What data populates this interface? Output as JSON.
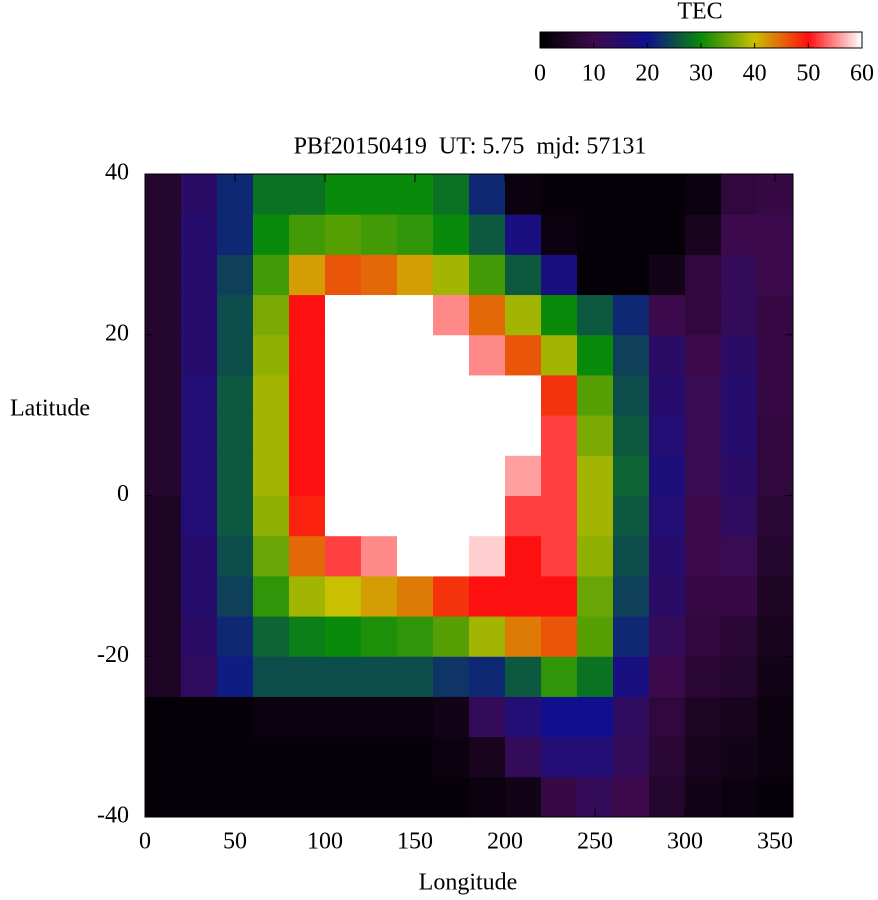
{
  "chart_data": {
    "type": "heatmap",
    "title": "PBf20150419  UT: 5.75  mjd: 57131",
    "x_label": "Longitude",
    "y_label": "Latitude",
    "colorbar_label": "TEC",
    "x": [
      10,
      30,
      50,
      70,
      90,
      110,
      130,
      150,
      170,
      190,
      210,
      230,
      250,
      270,
      290,
      310,
      330,
      350
    ],
    "y": [
      -37.5,
      -32.5,
      -27.5,
      -22.5,
      -17.5,
      -12.5,
      -7.5,
      -2.5,
      2.5,
      7.5,
      12.5,
      17.5,
      22.5,
      27.5,
      32.5,
      37.5
    ],
    "z": [
      [
        1,
        1,
        1,
        1,
        1,
        1,
        1,
        1,
        1,
        2,
        3,
        9,
        12,
        10,
        6,
        3,
        2,
        1
      ],
      [
        1,
        1,
        1,
        1,
        1,
        1,
        1,
        1,
        2,
        4,
        12,
        16,
        16,
        12,
        7,
        4,
        3,
        2
      ],
      [
        1,
        1,
        1,
        2,
        2,
        2,
        2,
        2,
        3,
        12,
        16,
        20,
        20,
        13,
        8,
        5,
        4,
        2
      ],
      [
        5,
        13,
        21,
        25,
        25,
        25,
        25,
        25,
        23,
        22,
        26,
        32,
        28,
        18,
        10,
        7,
        6,
        3
      ],
      [
        5,
        14,
        22,
        27,
        29,
        30,
        31,
        32,
        34,
        38,
        44,
        46,
        34,
        22,
        12,
        8,
        7,
        4
      ],
      [
        5,
        15,
        24,
        32,
        38,
        40,
        42,
        44,
        48,
        50,
        50,
        50,
        35,
        24,
        14,
        9,
        9,
        5
      ],
      [
        5,
        15,
        25,
        35,
        45,
        52,
        55,
        60,
        60,
        58,
        50,
        52,
        37,
        25,
        15,
        10,
        11,
        6
      ],
      [
        5,
        16,
        26,
        37,
        49,
        60,
        60,
        60,
        60,
        60,
        52,
        52,
        38,
        26,
        16,
        10,
        13,
        7
      ],
      [
        6,
        16,
        26,
        38,
        50,
        60,
        60,
        60,
        60,
        60,
        56,
        52,
        38,
        27,
        17,
        11,
        14,
        8
      ],
      [
        6,
        16,
        26,
        38,
        50,
        60,
        60,
        60,
        60,
        60,
        60,
        52,
        36,
        26,
        16,
        11,
        15,
        8
      ],
      [
        6,
        16,
        26,
        38,
        50,
        60,
        60,
        60,
        60,
        60,
        60,
        48,
        34,
        25,
        15,
        11,
        15,
        9
      ],
      [
        6,
        15,
        25,
        37,
        50,
        60,
        60,
        60,
        60,
        55,
        46,
        38,
        30,
        24,
        14,
        10,
        14,
        9
      ],
      [
        6,
        15,
        25,
        36,
        50,
        60,
        60,
        60,
        55,
        45,
        38,
        30,
        26,
        22,
        10,
        8,
        12,
        9
      ],
      [
        6,
        15,
        24,
        33,
        42,
        46,
        45,
        42,
        38,
        33,
        26,
        18,
        1,
        1,
        3,
        8,
        12,
        10
      ],
      [
        6,
        15,
        22,
        30,
        33,
        34,
        33,
        32,
        30,
        26,
        18,
        2,
        1,
        1,
        1,
        4,
        10,
        10
      ],
      [
        6,
        14,
        22,
        28,
        28,
        30,
        30,
        30,
        28,
        22,
        2,
        1,
        1,
        1,
        1,
        2,
        8,
        9
      ]
    ],
    "xlim": [
      0,
      360
    ],
    "xticks": [
      0,
      50,
      100,
      150,
      200,
      250,
      300,
      350
    ],
    "ylim": [
      -40,
      40
    ],
    "yticks": [
      -40,
      -20,
      0,
      20,
      40
    ],
    "zlim": [
      0,
      60
    ],
    "zticks": [
      0,
      10,
      20,
      30,
      40,
      50,
      60
    ],
    "colormap": [
      "#000000",
      "#3c0a4c",
      "#10108e",
      "#0a8a0a",
      "#c8c000",
      "#ff1010",
      "#ffffff"
    ]
  }
}
